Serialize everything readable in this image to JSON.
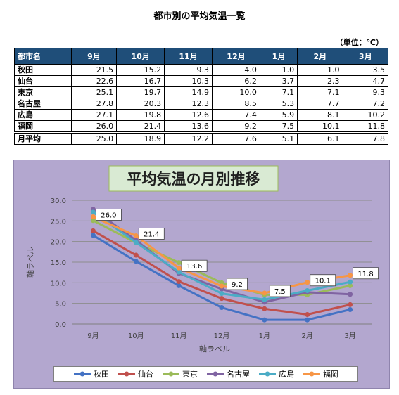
{
  "page": {
    "title": "都市別の平均気温一覧",
    "unit": "（単位：℃）"
  },
  "table": {
    "header_city": "都市名",
    "months": [
      "9月",
      "10月",
      "11月",
      "12月",
      "1月",
      "2月",
      "3月"
    ],
    "rows": [
      {
        "city": "秋田",
        "values": [
          "21.5",
          "15.2",
          "9.3",
          "4.0",
          "1.0",
          "1.0",
          "3.5"
        ]
      },
      {
        "city": "仙台",
        "values": [
          "22.6",
          "16.7",
          "10.3",
          "6.2",
          "3.7",
          "2.3",
          "4.7"
        ]
      },
      {
        "city": "東京",
        "values": [
          "25.1",
          "19.7",
          "14.9",
          "10.0",
          "7.1",
          "7.1",
          "9.3"
        ]
      },
      {
        "city": "名古屋",
        "values": [
          "27.8",
          "20.3",
          "12.3",
          "8.5",
          "5.3",
          "7.7",
          "7.2"
        ]
      },
      {
        "city": "広島",
        "values": [
          "27.1",
          "19.8",
          "12.6",
          "7.4",
          "5.9",
          "8.1",
          "10.2"
        ]
      },
      {
        "city": "福岡",
        "values": [
          "26.0",
          "21.4",
          "13.6",
          "9.2",
          "7.5",
          "10.1",
          "11.8"
        ]
      }
    ],
    "average": {
      "city": "月平均",
      "values": [
        "25.0",
        "18.9",
        "12.2",
        "7.6",
        "5.1",
        "6.1",
        "7.8"
      ]
    }
  },
  "chart_data": {
    "type": "line",
    "title": "平均気温の月別推移",
    "xlabel": "軸ラベル",
    "ylabel": "軸ラベル",
    "ylim": [
      0,
      30
    ],
    "yticks": [
      "0.0",
      "5.0",
      "10.0",
      "15.0",
      "20.0",
      "25.0",
      "30.0"
    ],
    "grid": true,
    "legend_position": "bottom",
    "categories": [
      "9月",
      "10月",
      "11月",
      "12月",
      "1月",
      "2月",
      "3月"
    ],
    "series": [
      {
        "name": "秋田",
        "color": "#4472c4",
        "values": [
          21.5,
          15.2,
          9.3,
          4.0,
          1.0,
          1.0,
          3.5
        ]
      },
      {
        "name": "仙台",
        "color": "#c0504d",
        "values": [
          22.6,
          16.7,
          10.3,
          6.2,
          3.7,
          2.3,
          4.7
        ]
      },
      {
        "name": "東京",
        "color": "#9bbb59",
        "values": [
          25.1,
          19.7,
          14.9,
          10.0,
          7.1,
          7.1,
          9.3
        ]
      },
      {
        "name": "名古屋",
        "color": "#8064a2",
        "values": [
          27.8,
          20.3,
          12.3,
          8.5,
          5.3,
          7.7,
          7.2
        ]
      },
      {
        "name": "広島",
        "color": "#4bacc6",
        "values": [
          27.1,
          19.8,
          12.6,
          7.4,
          5.9,
          8.1,
          10.2
        ]
      },
      {
        "name": "福岡",
        "color": "#f79646",
        "values": [
          26.0,
          21.4,
          13.6,
          9.2,
          7.5,
          10.1,
          11.8
        ]
      }
    ],
    "data_labels": {
      "series": "福岡",
      "labels": [
        "26.0",
        "21.4",
        "13.6",
        "9.2",
        "7.5",
        "10.1",
        "11.8"
      ]
    }
  }
}
